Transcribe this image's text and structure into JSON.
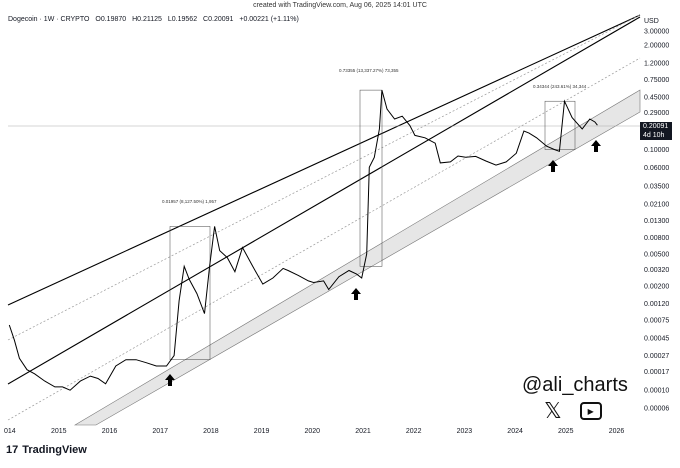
{
  "top_note": "created with TradingView.com, Aug 06, 2025 14:01 UTC",
  "header": {
    "symbol": "Dogecoin · 1W · CRYPTO",
    "open": "O0.19870",
    "high": "H0.21125",
    "low": "L0.19562",
    "close": "C0.20091",
    "change": "+0.00221 (+1.11%)"
  },
  "currency": "USD",
  "price_box": {
    "price": "0.20091",
    "countdown": "4d 10h"
  },
  "author": {
    "handle": "@ali_charts",
    "x_icon": "x-logo-icon",
    "youtube_icon": "play-icon"
  },
  "footer": {
    "brand": "TradingView",
    "logo": "tradingview-logo-icon"
  },
  "colors": {
    "channel_fill": "#e6e6e6",
    "line": "#000000",
    "accent": "#000000"
  },
  "chart_data": {
    "type": "line",
    "title": "",
    "y_scale": "log",
    "y_ticks": [
      "3.00000",
      "2.00000",
      "1.20000",
      "0.75000",
      "0.45000",
      "0.29000",
      "0.10000",
      "0.06000",
      "0.03500",
      "0.02100",
      "0.01300",
      "0.00800",
      "0.00500",
      "0.00320",
      "0.00200",
      "0.00120",
      "0.00075",
      "0.00045",
      "0.00027",
      "0.00017",
      "0.00010",
      "0.00006"
    ],
    "x_ticks": [
      "014",
      "2015",
      "2016",
      "2017",
      "2018",
      "2019",
      "2020",
      "2021",
      "2022",
      "2023",
      "2024",
      "2025",
      "2026"
    ],
    "annotations": [
      {
        "label": "0.01957 (8,127.50%) 1,957"
      },
      {
        "label": "0.73355 (13,337.27%) 73,355"
      },
      {
        "label": "0.34344 (243.61%) 34,344"
      }
    ],
    "series": [
      {
        "x": [
          2014.0,
          2014.1,
          2014.2,
          2014.35,
          2014.5,
          2014.7,
          2014.9,
          2015.05,
          2015.2,
          2015.4,
          2015.6,
          2015.75,
          2015.9,
          2016.1,
          2016.3,
          2016.5,
          2016.7,
          2016.9,
          2017.1,
          2017.25,
          2017.35,
          2017.45,
          2017.55,
          2017.7,
          2017.85,
          2017.95,
          2018.05,
          2018.15,
          2018.3,
          2018.45,
          2018.6,
          2018.8,
          2019.0,
          2019.2,
          2019.4,
          2019.5,
          2019.7,
          2019.9,
          2020.0,
          2020.2,
          2020.3,
          2020.5,
          2020.7,
          2020.85,
          2020.95,
          2021.05,
          2021.1,
          2021.2,
          2021.3,
          2021.35,
          2021.45,
          2021.6,
          2021.75,
          2021.9,
          2022.0,
          2022.2,
          2022.4,
          2022.5,
          2022.7,
          2022.85,
          2023.0,
          2023.2,
          2023.4,
          2023.6,
          2023.8,
          2024.0,
          2024.15,
          2024.25,
          2024.4,
          2024.6,
          2024.75,
          2024.85,
          2024.95,
          2025.1,
          2025.3,
          2025.45,
          2025.55,
          2025.6
        ],
        "y": [
          0.00065,
          0.00042,
          0.00025,
          0.00018,
          0.00016,
          0.00013,
          0.00011,
          0.00011,
          0.0001,
          0.00013,
          0.00015,
          0.00014,
          0.00012,
          0.0002,
          0.00024,
          0.00024,
          0.00022,
          0.0002,
          0.0002,
          0.00027,
          0.0013,
          0.0035,
          0.0024,
          0.0016,
          0.0009,
          0.0035,
          0.011,
          0.0055,
          0.0045,
          0.003,
          0.006,
          0.0035,
          0.0021,
          0.0025,
          0.0033,
          0.0031,
          0.0027,
          0.0023,
          0.0022,
          0.0023,
          0.0018,
          0.0026,
          0.0031,
          0.0028,
          0.0025,
          0.005,
          0.06,
          0.08,
          0.18,
          0.55,
          0.32,
          0.24,
          0.26,
          0.2,
          0.15,
          0.14,
          0.12,
          0.068,
          0.07,
          0.083,
          0.08,
          0.082,
          0.072,
          0.064,
          0.07,
          0.09,
          0.17,
          0.16,
          0.14,
          0.11,
          0.1,
          0.095,
          0.4,
          0.25,
          0.18,
          0.24,
          0.22,
          0.2009
        ]
      }
    ]
  }
}
